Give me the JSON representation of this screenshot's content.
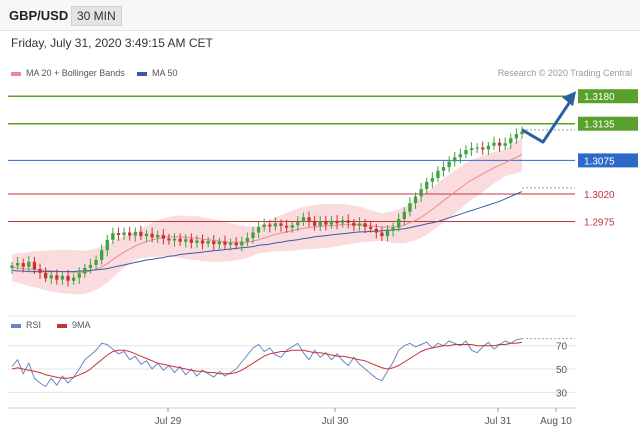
{
  "header": {
    "pair": "GBP/USD",
    "timeframe": "30 MIN"
  },
  "datetime": "Friday, July 31, 2020 3:49:15 AM CET",
  "legend": {
    "ma20": {
      "label": "MA 20 + Bollinger Bands",
      "color": "#e88a92"
    },
    "ma50": {
      "label": "MA 50",
      "color": "#3a5aa8"
    }
  },
  "credit": "Research © 2020 Trading Central",
  "colors": {
    "bull": "#3fa33f",
    "bear": "#c83232",
    "resistance": "#5aa02c",
    "support": "#c8323c",
    "pivot": "#2d6ac8",
    "arrow": "#2a60a0"
  },
  "chart_data": [
    {
      "type": "line",
      "xticks": [
        "Jul 29",
        "Jul 30",
        "Jul 31",
        "Aug 10"
      ],
      "ylim": [
        1.284,
        1.32
      ],
      "levels": [
        {
          "label": "1.3180",
          "value": 1.318,
          "kind": "resistance",
          "tag": true
        },
        {
          "label": "1.3135",
          "value": 1.3135,
          "kind": "resistance",
          "tag": true
        },
        {
          "label": "1.3075",
          "value": 1.3075,
          "kind": "pivot",
          "tag": true
        },
        {
          "label": "1.3020",
          "value": 1.302,
          "kind": "support",
          "tag": false
        },
        {
          "label": "1.2975",
          "value": 1.2975,
          "kind": "support",
          "tag": false
        }
      ],
      "current_price": 1.3125,
      "projection": {
        "via": 1.3105,
        "target": 1.318
      },
      "price_close": [
        1.2903,
        1.2907,
        1.2901,
        1.2909,
        1.2897,
        1.2891,
        1.2882,
        1.2887,
        1.288,
        1.2886,
        1.2878,
        1.2883,
        1.289,
        1.2899,
        1.2904,
        1.2912,
        1.2928,
        1.2945,
        1.2956,
        1.2953,
        1.2957,
        1.2952,
        1.2958,
        1.2951,
        1.2955,
        1.2949,
        1.2953,
        1.2947,
        1.2944,
        1.2947,
        1.2942,
        1.2946,
        1.294,
        1.2944,
        1.2939,
        1.2943,
        1.2938,
        1.2942,
        1.2937,
        1.294,
        1.2936,
        1.2942,
        1.2948,
        1.2957,
        1.2966,
        1.297,
        1.2967,
        1.2972,
        1.2968,
        1.2965,
        1.2969,
        1.2974,
        1.2982,
        1.2976,
        1.2968,
        1.2975,
        1.297,
        1.2976,
        1.2972,
        1.2977,
        1.2973,
        1.2968,
        1.2972,
        1.2966,
        1.2963,
        1.2957,
        1.2951,
        1.296,
        1.2965,
        1.2979,
        1.2991,
        1.3005,
        1.3016,
        1.3028,
        1.304,
        1.3046,
        1.3058,
        1.3064,
        1.3073,
        1.308,
        1.3085,
        1.3092,
        1.3095,
        1.3096,
        1.3093,
        1.3099,
        1.3104,
        1.3099,
        1.3103,
        1.3111,
        1.3118,
        1.3122
      ],
      "ma20": [
        1.2899,
        1.2899,
        1.2898,
        1.2897,
        1.2897,
        1.2896,
        1.2895,
        1.2894,
        1.2894,
        1.2893,
        1.2893,
        1.2892,
        1.2892,
        1.2892,
        1.2894,
        1.2897,
        1.2901,
        1.2906,
        1.2913,
        1.2919,
        1.2925,
        1.293,
        1.2935,
        1.2939,
        1.2942,
        1.2945,
        1.2947,
        1.2949,
        1.295,
        1.295,
        1.295,
        1.2949,
        1.2948,
        1.2948,
        1.2946,
        1.2945,
        1.2944,
        1.2943,
        1.2942,
        1.2941,
        1.2941,
        1.2941,
        1.2941,
        1.2943,
        1.2945,
        1.2948,
        1.2951,
        1.2954,
        1.2956,
        1.2958,
        1.296,
        1.2962,
        1.2964,
        1.2965,
        1.2966,
        1.2967,
        1.2968,
        1.2968,
        1.2969,
        1.297,
        1.297,
        1.297,
        1.297,
        1.2969,
        1.2968,
        1.2967,
        1.2966,
        1.2966,
        1.2966,
        1.2967,
        1.2969,
        1.2973,
        1.2977,
        1.2982,
        1.2988,
        1.2995,
        1.3002,
        1.3009,
        1.3016,
        1.3023,
        1.303,
        1.3037,
        1.3043,
        1.3048,
        1.3053,
        1.3058,
        1.3063,
        1.3067,
        1.3071,
        1.3076,
        1.308,
        1.3085
      ],
      "ma50": [
        1.2895,
        1.2894,
        1.2894,
        1.2893,
        1.2893,
        1.2893,
        1.2893,
        1.2893,
        1.2893,
        1.2893,
        1.2893,
        1.2893,
        1.2894,
        1.2894,
        1.2895,
        1.2896,
        1.2897,
        1.2898,
        1.29,
        1.2902,
        1.2904,
        1.2906,
        1.2908,
        1.291,
        1.2912,
        1.2913,
        1.2915,
        1.2916,
        1.2918,
        1.2919,
        1.2921,
        1.2922,
        1.2923,
        1.2924,
        1.2925,
        1.2926,
        1.2927,
        1.2928,
        1.2929,
        1.293,
        1.2931,
        1.2932,
        1.2933,
        1.2934,
        1.2936,
        1.2937,
        1.2938,
        1.294,
        1.2941,
        1.2943,
        1.2944,
        1.2945,
        1.2947,
        1.2948,
        1.295,
        1.2951,
        1.2952,
        1.2953,
        1.2954,
        1.2955,
        1.2956,
        1.2957,
        1.2958,
        1.2958,
        1.2959,
        1.2959,
        1.296,
        1.2961,
        1.2961,
        1.2962,
        1.2963,
        1.2965,
        1.2967,
        1.2969,
        1.2971,
        1.2973,
        1.2975,
        1.2978,
        1.2981,
        1.2984,
        1.2987,
        1.299,
        1.2993,
        1.2996,
        1.2999,
        1.3002,
        1.3005,
        1.3008,
        1.3012,
        1.3016,
        1.302,
        1.3024
      ]
    },
    {
      "type": "line",
      "legend": {
        "rsi": {
          "label": "RSI",
          "color": "#6a86c6"
        },
        "ma9": {
          "label": "9MA",
          "color": "#c83232"
        }
      },
      "ylim": [
        20,
        80
      ],
      "yticks": [
        70,
        50,
        30
      ],
      "rsi": [
        52,
        58,
        46,
        55,
        42,
        38,
        35,
        42,
        36,
        44,
        38,
        43,
        50,
        58,
        62,
        66,
        72,
        71,
        67,
        63,
        65,
        58,
        61,
        54,
        57,
        50,
        55,
        49,
        53,
        47,
        52,
        45,
        50,
        44,
        49,
        46,
        43,
        48,
        44,
        47,
        50,
        56,
        62,
        68,
        71,
        65,
        68,
        62,
        60,
        66,
        69,
        72,
        64,
        58,
        66,
        60,
        64,
        58,
        63,
        57,
        53,
        60,
        54,
        50,
        46,
        42,
        40,
        48,
        56,
        66,
        70,
        72,
        69,
        71,
        73,
        68,
        72,
        70,
        74,
        72,
        70,
        74,
        66,
        64,
        69,
        73,
        67,
        71,
        74,
        72,
        75,
        76
      ],
      "ma9": [
        50,
        51,
        50,
        49,
        48,
        47,
        45,
        44,
        43,
        42,
        42,
        43,
        45,
        47,
        50,
        54,
        58,
        62,
        65,
        66,
        66,
        65,
        63,
        61,
        59,
        57,
        55,
        54,
        53,
        52,
        51,
        50,
        49,
        48,
        48,
        47,
        47,
        46,
        46,
        46,
        47,
        49,
        52,
        55,
        58,
        61,
        63,
        64,
        65,
        65,
        66,
        66,
        66,
        65,
        64,
        64,
        63,
        62,
        61,
        61,
        60,
        59,
        58,
        57,
        55,
        53,
        51,
        50,
        51,
        53,
        56,
        59,
        62,
        65,
        67,
        68,
        69,
        70,
        70,
        71,
        71,
        71,
        71,
        70,
        70,
        70,
        70,
        71,
        71,
        72,
        72,
        73
      ]
    }
  ]
}
